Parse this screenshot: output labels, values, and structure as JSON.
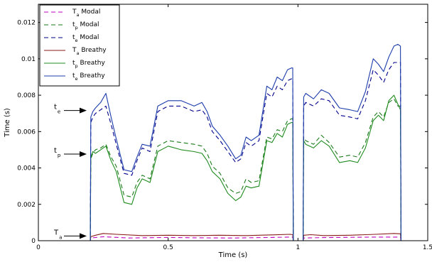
{
  "chart_data": {
    "type": "line",
    "title": "",
    "xlabel": "Time (s)",
    "ylabel": "Time (s)",
    "xlim": [
      0,
      1.5
    ],
    "ylim": [
      0,
      0.013
    ],
    "xticks": [
      0,
      0.5,
      1,
      1.5
    ],
    "xtick_labels": [
      "0",
      "0.5",
      "1",
      "1.5"
    ],
    "yticks": [
      0,
      0.002,
      0.004,
      0.006,
      0.008,
      0.01,
      0.012
    ],
    "ytick_labels": [
      "0",
      "0.002",
      "0.004",
      "0.006",
      "0.008",
      "0.01",
      "0.012"
    ],
    "grid": false,
    "legend_position": "top-left",
    "series": [
      {
        "name_main": "T",
        "name_sub": "a",
        "name_rest": "Modal",
        "color": "#c000c0",
        "dash": true,
        "x": [
          0,
          0.2,
          0.202,
          0.25,
          0.35,
          0.5,
          0.6,
          0.75,
          0.9,
          0.97,
          0.98,
          0.982,
          1.0,
          1.02,
          1.022,
          1.1,
          1.3,
          1.38,
          1.395,
          1.397,
          1.5
        ],
        "y": [
          0,
          0,
          0.00015,
          0.00022,
          0.00015,
          0.00018,
          0.00016,
          0.00015,
          0.00018,
          0.0002,
          0.0002,
          0,
          0,
          0,
          0.00015,
          0.00017,
          0.0002,
          0.0002,
          0.0002,
          0,
          0
        ]
      },
      {
        "name_main": "t",
        "name_sub": "p",
        "name_rest": "Modal",
        "color": "#1a7a1a",
        "dash": true,
        "x": [
          0,
          0.2,
          0.202,
          0.21,
          0.22,
          0.24,
          0.26,
          0.28,
          0.3,
          0.33,
          0.36,
          0.38,
          0.4,
          0.43,
          0.46,
          0.5,
          0.55,
          0.6,
          0.63,
          0.65,
          0.67,
          0.7,
          0.73,
          0.76,
          0.78,
          0.8,
          0.82,
          0.85,
          0.88,
          0.9,
          0.92,
          0.94,
          0.96,
          0.975,
          0.98,
          0.982,
          1.0,
          1.02,
          1.022,
          1.03,
          1.06,
          1.09,
          1.12,
          1.16,
          1.2,
          1.23,
          1.26,
          1.29,
          1.31,
          1.33,
          1.35,
          1.37,
          1.385,
          1.395,
          1.397,
          1.5
        ],
        "y": [
          0,
          0,
          0.0045,
          0.0048,
          0.005,
          0.0051,
          0.0053,
          0.0046,
          0.0041,
          0.0025,
          0.0024,
          0.0032,
          0.0036,
          0.0034,
          0.0052,
          0.0055,
          0.0054,
          0.0053,
          0.0052,
          0.0048,
          0.0041,
          0.0037,
          0.0029,
          0.0026,
          0.0027,
          0.0034,
          0.0032,
          0.0033,
          0.0057,
          0.0056,
          0.0061,
          0.006,
          0.0066,
          0.0067,
          0.0067,
          0,
          0,
          0,
          0.0057,
          0.0055,
          0.0053,
          0.0058,
          0.0054,
          0.0046,
          0.0047,
          0.0046,
          0.0054,
          0.0068,
          0.0071,
          0.0068,
          0.0076,
          0.0078,
          0.0074,
          0.0074,
          0,
          0
        ]
      },
      {
        "name_main": "t",
        "name_sub": "e",
        "name_rest": "Modal",
        "color": "#00008b",
        "dash": true,
        "x": [
          0,
          0.2,
          0.202,
          0.21,
          0.22,
          0.24,
          0.26,
          0.28,
          0.3,
          0.33,
          0.36,
          0.38,
          0.4,
          0.43,
          0.46,
          0.5,
          0.55,
          0.6,
          0.63,
          0.65,
          0.67,
          0.7,
          0.73,
          0.76,
          0.78,
          0.8,
          0.82,
          0.85,
          0.88,
          0.9,
          0.92,
          0.94,
          0.96,
          0.975,
          0.98,
          0.982,
          1.0,
          1.02,
          1.022,
          1.03,
          1.06,
          1.09,
          1.12,
          1.16,
          1.2,
          1.23,
          1.26,
          1.29,
          1.31,
          1.33,
          1.35,
          1.37,
          1.385,
          1.395,
          1.397,
          1.5
        ],
        "y": [
          0,
          0,
          0.0065,
          0.0068,
          0.007,
          0.0072,
          0.0074,
          0.0064,
          0.0053,
          0.0037,
          0.0036,
          0.0044,
          0.0051,
          0.0049,
          0.0071,
          0.0074,
          0.0074,
          0.0071,
          0.0072,
          0.0068,
          0.006,
          0.0055,
          0.0049,
          0.0043,
          0.0045,
          0.0054,
          0.0052,
          0.0055,
          0.0081,
          0.0079,
          0.0085,
          0.0083,
          0.0088,
          0.0089,
          0.0089,
          0,
          0,
          0,
          0.0074,
          0.0076,
          0.0074,
          0.0078,
          0.0077,
          0.0069,
          0.0068,
          0.0067,
          0.0077,
          0.0094,
          0.0091,
          0.0087,
          0.0094,
          0.0098,
          0.0098,
          0.0098,
          0,
          0
        ]
      },
      {
        "name_main": "T",
        "name_sub": "a",
        "name_rest": "Breathy",
        "color": "#8b1a1a",
        "dash": false,
        "x": [
          0,
          0.2,
          0.202,
          0.22,
          0.25,
          0.3,
          0.4,
          0.5,
          0.6,
          0.7,
          0.8,
          0.9,
          0.97,
          0.98,
          0.982,
          1.0,
          1.02,
          1.022,
          1.05,
          1.1,
          1.2,
          1.3,
          1.37,
          1.395,
          1.397,
          1.5
        ],
        "y": [
          0,
          0,
          0.00022,
          0.0003,
          0.0004,
          0.00035,
          0.00028,
          0.0003,
          0.00028,
          0.0003,
          0.00028,
          0.00032,
          0.00035,
          0.00033,
          0,
          0,
          0,
          0.0003,
          0.00033,
          0.00028,
          0.0003,
          0.00035,
          0.0004,
          0.00038,
          0,
          0
        ]
      },
      {
        "name_main": "t",
        "name_sub": "p",
        "name_rest": "Breathy",
        "color": "#1f8b1f",
        "dash": false,
        "x": [
          0,
          0.2,
          0.202,
          0.21,
          0.22,
          0.24,
          0.26,
          0.28,
          0.3,
          0.33,
          0.36,
          0.38,
          0.4,
          0.43,
          0.46,
          0.5,
          0.55,
          0.6,
          0.63,
          0.65,
          0.67,
          0.7,
          0.73,
          0.76,
          0.78,
          0.8,
          0.82,
          0.85,
          0.88,
          0.9,
          0.92,
          0.94,
          0.96,
          0.975,
          0.98,
          0.982,
          1.0,
          1.02,
          1.022,
          1.03,
          1.06,
          1.09,
          1.12,
          1.16,
          1.2,
          1.23,
          1.26,
          1.29,
          1.31,
          1.33,
          1.35,
          1.37,
          1.385,
          1.395,
          1.397,
          1.5
        ],
        "y": [
          0,
          0,
          0.0046,
          0.0049,
          0.0048,
          0.005,
          0.0052,
          0.0044,
          0.0038,
          0.0021,
          0.002,
          0.0029,
          0.0034,
          0.0032,
          0.0049,
          0.0052,
          0.005,
          0.0049,
          0.0048,
          0.0044,
          0.0038,
          0.0034,
          0.0026,
          0.0022,
          0.0024,
          0.003,
          0.0029,
          0.003,
          0.0055,
          0.0054,
          0.0059,
          0.0057,
          0.0064,
          0.0065,
          0.0065,
          0,
          0,
          0,
          0.0055,
          0.0053,
          0.0051,
          0.0055,
          0.0052,
          0.0043,
          0.0044,
          0.0043,
          0.0051,
          0.0066,
          0.0069,
          0.0066,
          0.0077,
          0.008,
          0.0075,
          0.0072,
          0,
          0
        ]
      },
      {
        "name_main": "t",
        "name_sub": "e",
        "name_rest": "Breathy",
        "color": "#1c3caa",
        "dash": false,
        "x": [
          0,
          0.2,
          0.202,
          0.21,
          0.22,
          0.24,
          0.26,
          0.28,
          0.3,
          0.33,
          0.36,
          0.38,
          0.4,
          0.43,
          0.46,
          0.5,
          0.55,
          0.6,
          0.63,
          0.65,
          0.67,
          0.7,
          0.73,
          0.76,
          0.78,
          0.8,
          0.82,
          0.85,
          0.88,
          0.9,
          0.92,
          0.94,
          0.96,
          0.975,
          0.98,
          0.982,
          1.0,
          1.02,
          1.022,
          1.03,
          1.06,
          1.09,
          1.12,
          1.16,
          1.2,
          1.23,
          1.26,
          1.29,
          1.31,
          1.33,
          1.35,
          1.37,
          1.385,
          1.395,
          1.397,
          1.5
        ],
        "y": [
          0,
          0,
          0.0068,
          0.0071,
          0.0073,
          0.0076,
          0.0081,
          0.0068,
          0.0056,
          0.0039,
          0.0038,
          0.0046,
          0.0053,
          0.0052,
          0.0074,
          0.0077,
          0.0077,
          0.0074,
          0.0076,
          0.0071,
          0.0063,
          0.0058,
          0.0052,
          0.0045,
          0.0047,
          0.0057,
          0.0055,
          0.0058,
          0.0085,
          0.0083,
          0.009,
          0.0088,
          0.0094,
          0.0095,
          0.0095,
          0,
          0,
          0,
          0.0079,
          0.0081,
          0.0078,
          0.0083,
          0.0081,
          0.0073,
          0.0072,
          0.0071,
          0.0082,
          0.01,
          0.0097,
          0.0093,
          0.0101,
          0.0107,
          0.0108,
          0.0107,
          0,
          0
        ]
      }
    ],
    "annotations": [
      {
        "main": "t",
        "sub": "e",
        "y": 0.0072
      },
      {
        "main": "t",
        "sub": "p",
        "y": 0.0048
      },
      {
        "main": "T",
        "sub": "a",
        "y": 0.0003
      }
    ]
  }
}
